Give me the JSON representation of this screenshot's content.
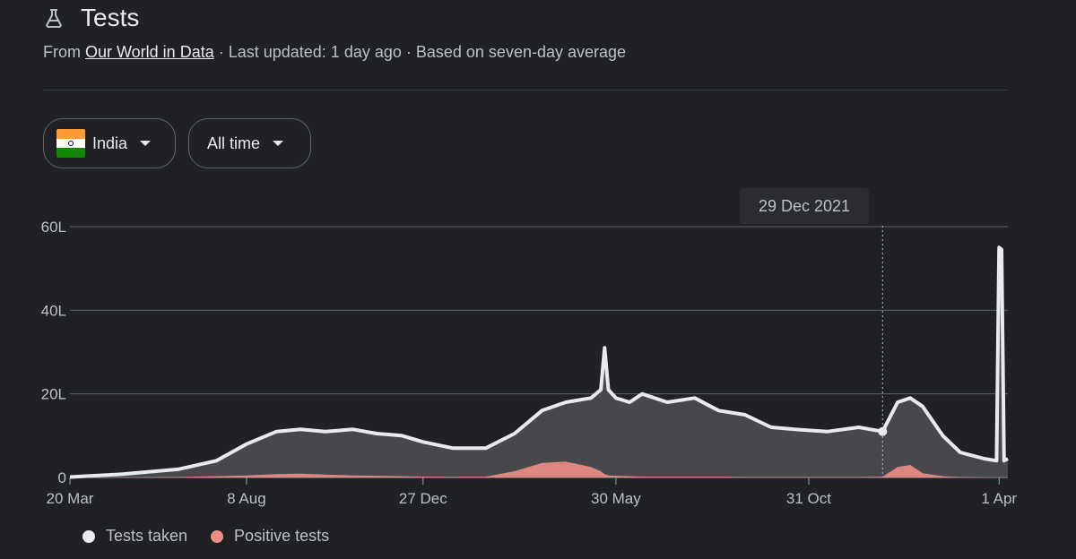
{
  "header": {
    "title": "Tests",
    "icon": "flask-icon"
  },
  "subtitle": {
    "prefix": "From ",
    "source_link": "Our World in Data",
    "updated": " · Last updated: 1 day ago · Based on seven-day average"
  },
  "filters": {
    "country": "India",
    "range": "All time"
  },
  "tooltip": {
    "date": "29 Dec 2021"
  },
  "colors": {
    "tests": "#e8eaed",
    "tests_fill": "#4a4b4e",
    "positive": "#ee8e87",
    "grid": "#5f6368"
  },
  "chart_data": {
    "type": "area",
    "x_tick_labels": [
      "20 Mar",
      "8 Aug",
      "27 Dec",
      "30 May",
      "31 Oct",
      "1 Apr"
    ],
    "y_tick_labels": [
      "0",
      "20L",
      "40L",
      "60L"
    ],
    "ylim": [
      0,
      60
    ],
    "y_unit": "L",
    "x": [
      "2020-03-20",
      "2020-05-01",
      "2020-06-15",
      "2020-07-15",
      "2020-08-08",
      "2020-09-01",
      "2020-09-20",
      "2020-10-10",
      "2020-11-01",
      "2020-11-20",
      "2020-12-10",
      "2020-12-27",
      "2021-01-20",
      "2021-02-15",
      "2021-03-10",
      "2021-04-01",
      "2021-04-20",
      "2021-05-10",
      "2021-05-18",
      "2021-05-21",
      "2021-05-24",
      "2021-05-30",
      "2021-06-10",
      "2021-06-20",
      "2021-07-10",
      "2021-08-01",
      "2021-08-20",
      "2021-09-10",
      "2021-10-01",
      "2021-10-20",
      "2021-11-15",
      "2021-12-10",
      "2021-12-29",
      "2022-01-10",
      "2022-01-20",
      "2022-01-30",
      "2022-02-15",
      "2022-03-01",
      "2022-03-20",
      "2022-03-30",
      "2022-04-01",
      "2022-04-03",
      "2022-04-05",
      "2022-04-08"
    ],
    "series": [
      {
        "name": "Tests taken",
        "values": [
          0.1,
          0.8,
          2.0,
          4.0,
          8.0,
          11.0,
          11.5,
          11.0,
          11.5,
          10.5,
          10.0,
          8.5,
          7.0,
          7.0,
          10.5,
          16.0,
          18.0,
          19.0,
          21.0,
          31.0,
          21.0,
          19.0,
          18.0,
          20.0,
          18.0,
          19.0,
          16.0,
          15.0,
          12.0,
          11.5,
          11.0,
          12.0,
          11.0,
          18.0,
          19.0,
          17.0,
          10.0,
          6.0,
          4.5,
          4.0,
          55.0,
          54.5,
          4.0,
          4.5
        ]
      },
      {
        "name": "Positive tests",
        "values": [
          0,
          0.05,
          0.1,
          0.3,
          0.5,
          0.8,
          0.9,
          0.7,
          0.5,
          0.4,
          0.3,
          0.2,
          0.15,
          0.2,
          1.5,
          3.5,
          3.8,
          2.5,
          1.5,
          0.8,
          0.5,
          0.4,
          0.3,
          0.2,
          0.2,
          0.2,
          0.2,
          0.1,
          0.1,
          0.1,
          0.1,
          0.1,
          0.2,
          2.5,
          3.0,
          1.0,
          0.3,
          0.1,
          0.05,
          0.05,
          0.05,
          0.05,
          0.05,
          0.05
        ]
      }
    ],
    "cursor_date": "2021-12-29",
    "grid": true,
    "legend_position": "bottom-left"
  }
}
